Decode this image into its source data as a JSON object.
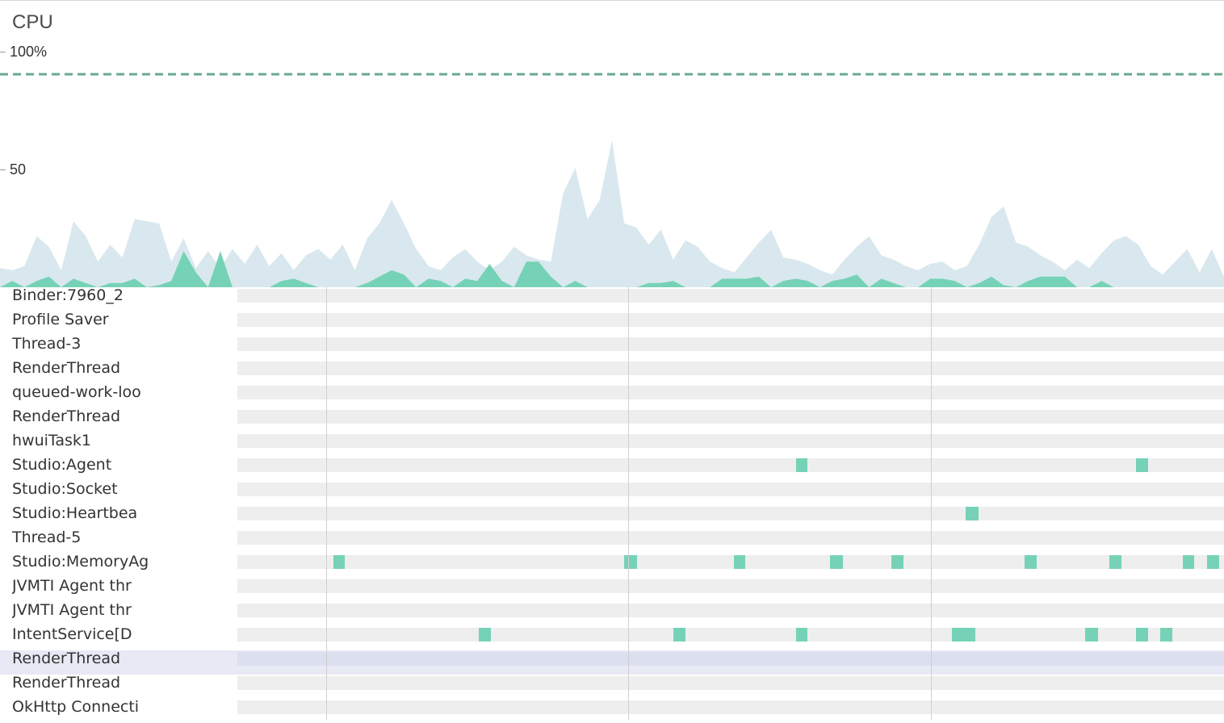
{
  "cpu": {
    "title": "CPU",
    "axis_max_label": "100%",
    "axis_mid_label": "50",
    "colors": {
      "total": "#d9e8ee",
      "app": "#76d2b6",
      "limit": "#6aa892"
    },
    "chart_data": {
      "type": "area",
      "x_label": "",
      "y_label": "",
      "ylim": [
        0,
        100
      ],
      "limit_line": 100,
      "x": [
        0,
        1,
        2,
        3,
        4,
        5,
        6,
        7,
        8,
        9,
        10,
        11,
        12,
        13,
        14,
        15,
        16,
        17,
        18,
        19,
        20,
        21,
        22,
        23,
        24,
        25,
        26,
        27,
        28,
        29,
        30,
        31,
        32,
        33,
        34,
        35,
        36,
        37,
        38,
        39,
        40,
        41,
        42,
        43,
        44,
        45,
        46,
        47,
        48,
        49,
        50,
        51,
        52,
        53,
        54,
        55,
        56,
        57,
        58,
        59,
        60,
        61,
        62,
        63,
        64,
        65,
        66,
        67,
        68,
        69,
        70,
        71,
        72,
        73,
        74,
        75,
        76,
        77,
        78,
        79,
        80,
        81,
        82,
        83,
        84,
        85,
        86,
        87,
        88,
        89,
        90,
        91,
        92,
        93,
        94,
        95,
        96,
        97,
        98,
        99,
        100
      ],
      "series": [
        {
          "values": [
            9,
            8,
            10,
            24,
            19,
            8,
            31,
            24,
            12,
            20,
            14,
            32,
            31,
            30,
            12,
            23,
            9,
            17,
            9,
            18,
            11,
            20,
            10,
            16,
            8,
            15,
            18,
            13,
            20,
            8,
            23,
            30,
            41,
            30,
            18,
            10,
            8,
            14,
            18,
            12,
            8,
            12,
            19,
            15,
            13,
            12,
            44,
            56,
            32,
            41,
            69,
            30,
            28,
            20,
            27,
            13,
            22,
            19,
            12,
            9,
            7,
            14,
            21,
            27,
            14,
            13,
            11,
            8,
            6,
            13,
            19,
            24,
            15,
            13,
            10,
            8,
            11,
            12,
            8,
            10,
            20,
            33,
            38,
            21,
            19,
            15,
            12,
            8,
            13,
            9,
            16,
            22,
            24,
            20,
            10,
            6,
            12,
            18,
            7,
            18,
            5
          ]
        },
        {
          "values": [
            0,
            3,
            0,
            3,
            5,
            0,
            4,
            2,
            0,
            2,
            2,
            4,
            0,
            1,
            3,
            17,
            7,
            0,
            17,
            0,
            0,
            0,
            0,
            3,
            4,
            2,
            0,
            0,
            0,
            0,
            2,
            5,
            8,
            6,
            0,
            4,
            3,
            0,
            4,
            3,
            11,
            3,
            0,
            12,
            12,
            5,
            0,
            3,
            0,
            0,
            0,
            0,
            0,
            2,
            2,
            3,
            0,
            0,
            0,
            4,
            4,
            4,
            5,
            0,
            3,
            4,
            3,
            0,
            3,
            4,
            6,
            0,
            4,
            2,
            0,
            0,
            4,
            4,
            3,
            0,
            2,
            5,
            1,
            0,
            3,
            5,
            5,
            5,
            0,
            0,
            3,
            0,
            0,
            0,
            0,
            0,
            0,
            0,
            0,
            0,
            0
          ]
        }
      ]
    }
  },
  "track_colors": {
    "running": "#76d2b6",
    "idle": "#eeeeee",
    "selected_row": "#e7eaf5"
  },
  "threads": [
    {
      "name": "Binder:7960_2",
      "blocks": []
    },
    {
      "name": "Profile Saver",
      "blocks": []
    },
    {
      "name": "Thread-3",
      "blocks": []
    },
    {
      "name": "RenderThread",
      "blocks": []
    },
    {
      "name": "queued-work-loo",
      "blocks": []
    },
    {
      "name": "RenderThread",
      "blocks": []
    },
    {
      "name": "hwuiTask1",
      "blocks": []
    },
    {
      "name": "Studio:Agent",
      "blocks": [
        [
          0.566,
          0.578
        ],
        [
          0.911,
          0.923
        ]
      ]
    },
    {
      "name": "Studio:Socket",
      "blocks": []
    },
    {
      "name": "Studio:Heartbea",
      "blocks": [
        [
          0.738,
          0.751
        ]
      ]
    },
    {
      "name": "Thread-5",
      "blocks": []
    },
    {
      "name": "Studio:MemoryAg",
      "blocks": [
        [
          0.097,
          0.109
        ],
        [
          0.392,
          0.405
        ],
        [
          0.503,
          0.515
        ],
        [
          0.601,
          0.614
        ],
        [
          0.663,
          0.675
        ],
        [
          0.798,
          0.81
        ],
        [
          0.884,
          0.896
        ],
        [
          0.958,
          0.97
        ],
        [
          0.983,
          0.995
        ]
      ]
    },
    {
      "name": "JVMTI Agent thr",
      "blocks": []
    },
    {
      "name": "JVMTI Agent thr",
      "blocks": []
    },
    {
      "name": "IntentService[D",
      "blocks": [
        [
          0.245,
          0.257
        ],
        [
          0.442,
          0.454
        ],
        [
          0.566,
          0.578
        ],
        [
          0.724,
          0.748
        ],
        [
          0.859,
          0.872
        ],
        [
          0.911,
          0.923
        ],
        [
          0.935,
          0.948
        ]
      ]
    },
    {
      "name": "RenderThread",
      "blocks": [],
      "selected": true
    },
    {
      "name": "RenderThread",
      "blocks": []
    },
    {
      "name": "OkHttp Connecti",
      "blocks": []
    }
  ]
}
